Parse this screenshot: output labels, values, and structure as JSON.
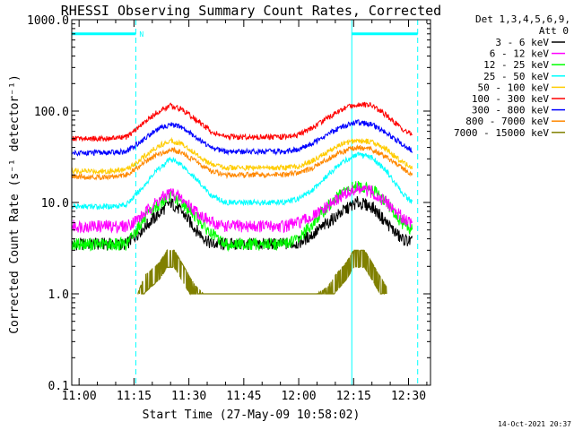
{
  "chart_data": {
    "type": "line",
    "title": "RHESSI Observing Summary Count Rates, Corrected",
    "xlabel": "Start Time (27-May-09 10:58:02)",
    "ylabel": "Corrected Count Rate (s⁻¹ detector⁻¹)",
    "x_unit": "minutes after 10:58:02",
    "xlim": [
      0,
      98
    ],
    "ylim": [
      0.1,
      1000
    ],
    "yscale": "log",
    "x_ticks": [
      {
        "x": 2,
        "label": "11:00"
      },
      {
        "x": 17,
        "label": "11:15"
      },
      {
        "x": 32,
        "label": "11:30"
      },
      {
        "x": 47,
        "label": "11:45"
      },
      {
        "x": 62,
        "label": "12:00"
      },
      {
        "x": 77,
        "label": "12:15"
      },
      {
        "x": 92,
        "label": "12:30"
      }
    ],
    "y_ticks": [
      {
        "y": 0.1,
        "label": "0.1"
      },
      {
        "y": 1,
        "label": "1.0"
      },
      {
        "y": 10,
        "label": "10.0"
      },
      {
        "y": 100,
        "label": "100.0"
      },
      {
        "y": 1000,
        "label": "1000.0"
      }
    ],
    "legend_header": [
      "Det 1,3,4,5,6,9,",
      "Att 0"
    ],
    "legend_position": "right",
    "series": [
      {
        "name": "3 - 6 keV",
        "color": "#000000",
        "x": [
          0,
          10,
          15,
          19,
          23,
          27,
          30,
          34,
          38,
          42,
          50,
          58,
          62,
          66,
          70,
          74,
          78,
          82,
          86,
          90,
          93
        ],
        "y": [
          3.5,
          3.5,
          3.5,
          5,
          7,
          10,
          8,
          5,
          3.5,
          3.5,
          3.5,
          3.5,
          3.6,
          4.5,
          6,
          8,
          10,
          9,
          6,
          4,
          3.7
        ]
      },
      {
        "name": "6 - 12 keV",
        "color": "#ff00ff",
        "x": [
          0,
          10,
          15,
          19,
          23,
          27,
          30,
          34,
          38,
          42,
          50,
          58,
          62,
          66,
          70,
          74,
          78,
          82,
          86,
          90,
          93
        ],
        "y": [
          5.5,
          5.5,
          5.5,
          7,
          10,
          13,
          11,
          8,
          6,
          5.5,
          5.5,
          5.5,
          6,
          7,
          9,
          12,
          14,
          13,
          10,
          7,
          6
        ]
      },
      {
        "name": "12 - 25 keV",
        "color": "#00ff00",
        "x": [
          0,
          10,
          15,
          19,
          23,
          27,
          30,
          34,
          38,
          42,
          50,
          58,
          62,
          66,
          70,
          74,
          78,
          82,
          86,
          90,
          93
        ],
        "y": [
          3.5,
          3.5,
          3.5,
          6,
          9,
          12,
          10,
          7,
          4.5,
          3.5,
          3.5,
          3.5,
          4,
          6,
          9,
          13,
          15,
          14,
          10,
          6,
          5
        ]
      },
      {
        "name": "25 - 50 keV",
        "color": "#00ffff",
        "x": [
          0,
          10,
          15,
          19,
          23,
          27,
          30,
          34,
          38,
          42,
          50,
          58,
          62,
          66,
          70,
          74,
          78,
          82,
          86,
          90,
          93
        ],
        "y": [
          9,
          9,
          9.5,
          14,
          22,
          30,
          26,
          18,
          12,
          10,
          10,
          10,
          11,
          14,
          20,
          28,
          33,
          31,
          22,
          13,
          10
        ]
      },
      {
        "name": "50 - 100 keV",
        "color": "#ffcc00",
        "x": [
          0,
          10,
          15,
          19,
          23,
          27,
          30,
          34,
          38,
          42,
          50,
          58,
          62,
          66,
          70,
          74,
          78,
          82,
          86,
          90,
          93
        ],
        "y": [
          22,
          22,
          23,
          30,
          40,
          48,
          44,
          34,
          26,
          24,
          24,
          24,
          25,
          29,
          36,
          44,
          48,
          46,
          38,
          28,
          24
        ]
      },
      {
        "name": "100 - 300 keV",
        "color": "#ff0000",
        "x": [
          0,
          10,
          15,
          19,
          23,
          27,
          30,
          34,
          38,
          42,
          50,
          58,
          62,
          66,
          70,
          74,
          78,
          82,
          86,
          90,
          93
        ],
        "y": [
          50,
          50,
          52,
          70,
          95,
          115,
          105,
          80,
          60,
          52,
          52,
          52,
          55,
          66,
          85,
          105,
          120,
          115,
          90,
          65,
          55
        ]
      },
      {
        "name": "300 - 800 keV",
        "color": "#0000ff",
        "x": [
          0,
          10,
          15,
          19,
          23,
          27,
          30,
          34,
          38,
          42,
          50,
          58,
          62,
          66,
          70,
          74,
          78,
          82,
          86,
          90,
          93
        ],
        "y": [
          35,
          35,
          36,
          47,
          62,
          72,
          66,
          52,
          40,
          36,
          36,
          36,
          38,
          45,
          56,
          68,
          75,
          72,
          58,
          44,
          37
        ]
      },
      {
        "name": "800 - 7000 keV",
        "color": "#ff8800",
        "x": [
          0,
          10,
          15,
          19,
          23,
          27,
          30,
          34,
          38,
          42,
          50,
          58,
          62,
          66,
          70,
          74,
          78,
          82,
          86,
          90,
          93
        ],
        "y": [
          19,
          19,
          20,
          26,
          33,
          38,
          35,
          28,
          22,
          20,
          20,
          20,
          21,
          24,
          30,
          36,
          40,
          38,
          31,
          24,
          20
        ]
      },
      {
        "name": "7000 - 15000 keV",
        "color": "#808000",
        "x": [
          18,
          20,
          24,
          26,
          28,
          30,
          32,
          34,
          36,
          40,
          64,
          67,
          70,
          72,
          75,
          77,
          80,
          82,
          84,
          86
        ],
        "y": [
          1,
          1.6,
          2.2,
          3,
          3,
          2.2,
          1.6,
          1.2,
          1,
          1,
          1,
          1,
          1.2,
          1.6,
          2.2,
          3,
          3,
          2.2,
          1.6,
          1.2
        ]
      }
    ],
    "vertical_lines": [
      {
        "x": 0,
        "color": "#00ffff",
        "style": "solid"
      },
      {
        "x": 17.5,
        "color": "#00ffff",
        "style": "dashed"
      },
      {
        "x": 76.5,
        "color": "#00ffff",
        "style": "solid"
      },
      {
        "x": 94.5,
        "color": "#00ffff",
        "style": "dashed"
      }
    ],
    "night_bars": [
      {
        "x_start": 0,
        "x_end": 17.5,
        "y": 700,
        "color": "#00ffff",
        "label": "N"
      },
      {
        "x_start": 76.5,
        "x_end": 94.5,
        "y": 700,
        "color": "#00ffff",
        "label": ""
      }
    ]
  },
  "footer": {
    "timestamp": "14-Oct-2021 20:37"
  }
}
